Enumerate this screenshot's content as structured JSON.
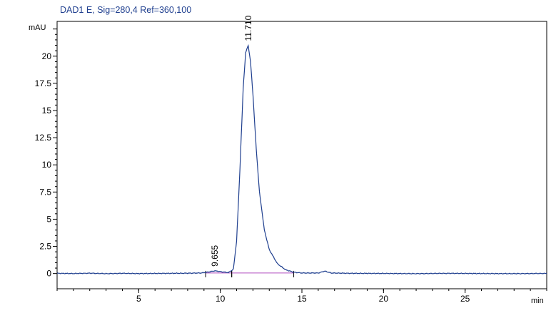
{
  "chart_data": {
    "type": "line",
    "title": "DAD1 E, Sig=280,4 Ref=360,100",
    "xlabel": "min",
    "ylabel": "mAU",
    "xlim": [
      0,
      30
    ],
    "ylim": [
      -1.4,
      23.2
    ],
    "xticks": [
      "5",
      "10",
      "15",
      "20",
      "25"
    ],
    "xtick_values": [
      5,
      10,
      15,
      20,
      25
    ],
    "yticks": [
      "0",
      "2.5",
      "5",
      "7.5",
      "10",
      "12.5",
      "15",
      "17.5",
      "20"
    ],
    "ytick_values": [
      0,
      2.5,
      5,
      7.5,
      10,
      12.5,
      15,
      17.5,
      20
    ],
    "grid": false,
    "series": [
      {
        "color": "#1f3f8f",
        "x": [
          0,
          1,
          2,
          3,
          4,
          5,
          6,
          7,
          8,
          8.8,
          9.2,
          9.655,
          10.0,
          10.5,
          10.8,
          11.0,
          11.2,
          11.4,
          11.55,
          11.71,
          11.85,
          12.0,
          12.2,
          12.4,
          12.7,
          13.0,
          13.5,
          14.0,
          14.5,
          15,
          16,
          16.4,
          16.8,
          18,
          20,
          22,
          24,
          26,
          28,
          30
        ],
        "values": [
          0.02,
          0.0,
          0.03,
          -0.01,
          0.02,
          0.0,
          0.01,
          0.02,
          0.03,
          0.05,
          0.12,
          0.25,
          0.18,
          0.08,
          0.4,
          3.0,
          9.5,
          17.0,
          20.3,
          21.0,
          19.5,
          16.5,
          11.5,
          7.5,
          4.0,
          2.2,
          0.9,
          0.35,
          0.12,
          0.05,
          0.05,
          0.22,
          0.05,
          0.02,
          0.01,
          -0.01,
          0.02,
          0.0,
          -0.01,
          0.01
        ]
      }
    ],
    "baselines": [
      {
        "color": "#b24fc0",
        "x": [
          9.1,
          10.7
        ],
        "values": [
          0.05,
          0.05
        ]
      },
      {
        "color": "#b24fc0",
        "x": [
          10.7,
          14.5
        ],
        "values": [
          0.05,
          0.05
        ]
      }
    ],
    "peaks": [
      {
        "label": "9.655",
        "x": 9.655,
        "y": 0.25
      },
      {
        "label": "11.710",
        "x": 11.71,
        "y": 21.0
      }
    ],
    "colors": {
      "axis": "#000000",
      "trace": "#1f3f8f",
      "baseline": "#b24fc0",
      "title": "#1f3f8f"
    }
  }
}
